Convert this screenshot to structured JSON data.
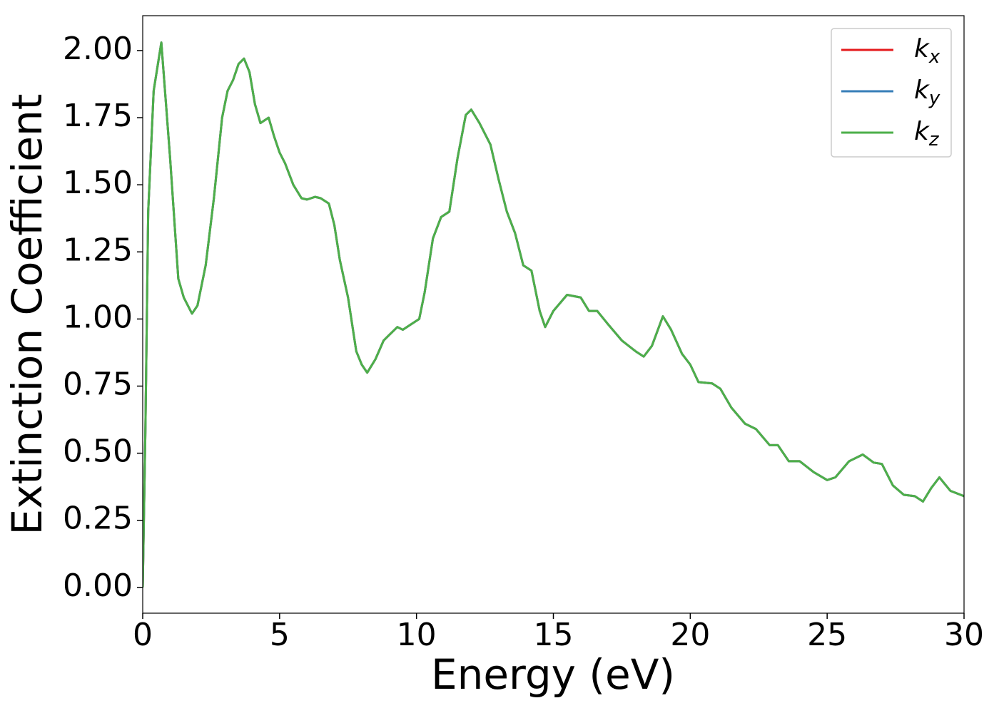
{
  "chart_data": {
    "type": "line",
    "xlabel": "Energy (eV)",
    "ylabel": "Extinction Coefficient",
    "xlim": [
      0,
      30
    ],
    "ylim": [
      -0.096,
      2.13
    ],
    "xticks": [
      0,
      5,
      10,
      15,
      20,
      25,
      30
    ],
    "yticks": [
      {
        "value": 0,
        "label": "0.00"
      },
      {
        "value": 0.25,
        "label": "0.25"
      },
      {
        "value": 0.5,
        "label": "0.50"
      },
      {
        "value": 0.75,
        "label": "0.75"
      },
      {
        "value": 1,
        "label": "1.00"
      },
      {
        "value": 1.25,
        "label": "1.25"
      },
      {
        "value": 1.5,
        "label": "1.50"
      },
      {
        "value": 1.75,
        "label": "1.75"
      },
      {
        "value": 2,
        "label": "2.00"
      }
    ],
    "legend": "upper right",
    "x": [
      0,
      0.1,
      0.2,
      0.4,
      0.68,
      1.0,
      1.3,
      1.5,
      1.8,
      2.0,
      2.3,
      2.6,
      2.9,
      3.1,
      3.3,
      3.5,
      3.7,
      3.9,
      4.1,
      4.3,
      4.6,
      4.8,
      5.0,
      5.2,
      5.5,
      5.8,
      6.0,
      6.3,
      6.5,
      6.8,
      7.0,
      7.2,
      7.5,
      7.8,
      8.0,
      8.2,
      8.5,
      8.8,
      9.0,
      9.3,
      9.5,
      9.8,
      10.1,
      10.3,
      10.6,
      10.9,
      11.2,
      11.5,
      11.8,
      12.0,
      12.3,
      12.7,
      13.0,
      13.3,
      13.6,
      13.9,
      14.2,
      14.5,
      14.7,
      15.0,
      15.5,
      16.0,
      16.3,
      16.6,
      17.0,
      17.5,
      18.0,
      18.3,
      18.6,
      19.0,
      19.3,
      19.7,
      20.0,
      20.3,
      20.8,
      21.1,
      21.5,
      22.0,
      22.4,
      22.9,
      23.2,
      23.6,
      24.0,
      24.5,
      25.0,
      25.3,
      25.8,
      26.3,
      26.7,
      27.0,
      27.4,
      27.8,
      28.2,
      28.5,
      28.8,
      29.1,
      29.5,
      30.0
    ],
    "series": [
      {
        "name": "k_x",
        "color": "#e41a1c",
        "values": [
          0,
          0.6,
          1.4,
          1.85,
          2.03,
          1.6,
          1.15,
          1.08,
          1.02,
          1.05,
          1.2,
          1.45,
          1.75,
          1.85,
          1.89,
          1.95,
          1.97,
          1.92,
          1.8,
          1.73,
          1.75,
          1.68,
          1.62,
          1.58,
          1.5,
          1.45,
          1.445,
          1.455,
          1.45,
          1.43,
          1.35,
          1.22,
          1.08,
          0.88,
          0.83,
          0.8,
          0.85,
          0.92,
          0.94,
          0.97,
          0.96,
          0.98,
          1.0,
          1.1,
          1.3,
          1.38,
          1.4,
          1.6,
          1.76,
          1.78,
          1.73,
          1.65,
          1.52,
          1.4,
          1.32,
          1.2,
          1.18,
          1.03,
          0.97,
          1.03,
          1.09,
          1.08,
          1.03,
          1.03,
          0.98,
          0.92,
          0.88,
          0.86,
          0.9,
          1.01,
          0.96,
          0.87,
          0.83,
          0.765,
          0.76,
          0.74,
          0.67,
          0.61,
          0.59,
          0.53,
          0.53,
          0.47,
          0.47,
          0.43,
          0.4,
          0.41,
          0.47,
          0.495,
          0.465,
          0.46,
          0.38,
          0.345,
          0.34,
          0.32,
          0.37,
          0.41,
          0.36,
          0.34
        ]
      },
      {
        "name": "k_y",
        "color": "#377eb8",
        "values": [
          0,
          0.6,
          1.4,
          1.85,
          2.03,
          1.6,
          1.15,
          1.08,
          1.02,
          1.05,
          1.2,
          1.45,
          1.75,
          1.85,
          1.89,
          1.95,
          1.97,
          1.92,
          1.8,
          1.73,
          1.75,
          1.68,
          1.62,
          1.58,
          1.5,
          1.45,
          1.445,
          1.455,
          1.45,
          1.43,
          1.35,
          1.22,
          1.08,
          0.88,
          0.83,
          0.8,
          0.85,
          0.92,
          0.94,
          0.97,
          0.96,
          0.98,
          1.0,
          1.1,
          1.3,
          1.38,
          1.4,
          1.6,
          1.76,
          1.78,
          1.73,
          1.65,
          1.52,
          1.4,
          1.32,
          1.2,
          1.18,
          1.03,
          0.97,
          1.03,
          1.09,
          1.08,
          1.03,
          1.03,
          0.98,
          0.92,
          0.88,
          0.86,
          0.9,
          1.01,
          0.96,
          0.87,
          0.83,
          0.765,
          0.76,
          0.74,
          0.67,
          0.61,
          0.59,
          0.53,
          0.53,
          0.47,
          0.47,
          0.43,
          0.4,
          0.41,
          0.47,
          0.495,
          0.465,
          0.46,
          0.38,
          0.345,
          0.34,
          0.32,
          0.37,
          0.41,
          0.36,
          0.34
        ]
      },
      {
        "name": "k_z",
        "color": "#4daf4a",
        "values": [
          0,
          0.6,
          1.4,
          1.85,
          2.03,
          1.6,
          1.15,
          1.08,
          1.02,
          1.05,
          1.2,
          1.45,
          1.75,
          1.85,
          1.89,
          1.95,
          1.97,
          1.92,
          1.8,
          1.73,
          1.75,
          1.68,
          1.62,
          1.58,
          1.5,
          1.45,
          1.445,
          1.455,
          1.45,
          1.43,
          1.35,
          1.22,
          1.08,
          0.88,
          0.83,
          0.8,
          0.85,
          0.92,
          0.94,
          0.97,
          0.96,
          0.98,
          1.0,
          1.1,
          1.3,
          1.38,
          1.4,
          1.6,
          1.76,
          1.78,
          1.73,
          1.65,
          1.52,
          1.4,
          1.32,
          1.2,
          1.18,
          1.03,
          0.97,
          1.03,
          1.09,
          1.08,
          1.03,
          1.03,
          0.98,
          0.92,
          0.88,
          0.86,
          0.9,
          1.01,
          0.96,
          0.87,
          0.83,
          0.765,
          0.76,
          0.74,
          0.67,
          0.61,
          0.59,
          0.53,
          0.53,
          0.47,
          0.47,
          0.43,
          0.4,
          0.41,
          0.47,
          0.495,
          0.465,
          0.46,
          0.38,
          0.345,
          0.34,
          0.32,
          0.37,
          0.41,
          0.36,
          0.34
        ]
      }
    ]
  }
}
